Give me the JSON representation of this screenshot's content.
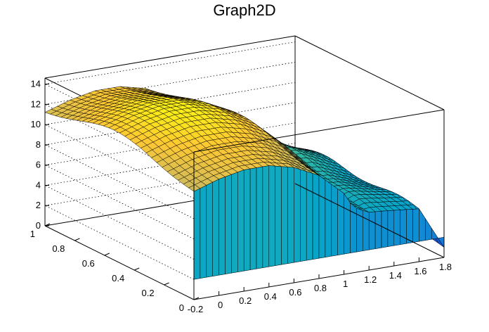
{
  "chart_data": {
    "type": "surface",
    "title": "Graph2D",
    "xlabel": "",
    "ylabel": "",
    "zlabel": "",
    "x_ticks": [
      "-0.2",
      "0",
      "0.2",
      "0.4",
      "0.6",
      "0.8",
      "1",
      "1.2",
      "1.4",
      "1.6",
      "1.8"
    ],
    "y_ticks": [
      "0",
      "0.2",
      "0.4",
      "0.6",
      "0.8",
      "1"
    ],
    "z_ticks": [
      "0",
      "2",
      "4",
      "6",
      "8",
      "10",
      "12",
      "14"
    ],
    "xlim": [
      -0.2,
      1.8
    ],
    "ylim": [
      0,
      1
    ],
    "zlim": [
      0,
      14.6
    ],
    "grid": true,
    "colormap": [
      "#352a87",
      "#0f5cdd",
      "#1481d6",
      "#06a4ca",
      "#2eb7a4",
      "#87bf77",
      "#d1bb59",
      "#fec832",
      "#f9fb0e"
    ],
    "profile_x": [
      -0.2,
      0.0,
      0.2,
      0.4,
      0.6,
      0.8,
      1.0,
      1.1,
      1.2,
      1.4,
      1.6,
      1.8
    ],
    "profile_z": [
      11.0,
      11.8,
      12.3,
      12.3,
      11.7,
      10.5,
      8.3,
      6.2,
      5.6,
      5.4,
      5.2,
      1.0
    ],
    "ridge_y": 0.55,
    "ridge_width": 0.32,
    "ridge_amplitude": 2.2,
    "cliff_x": 1.75,
    "cliff_y": 0.35
  }
}
